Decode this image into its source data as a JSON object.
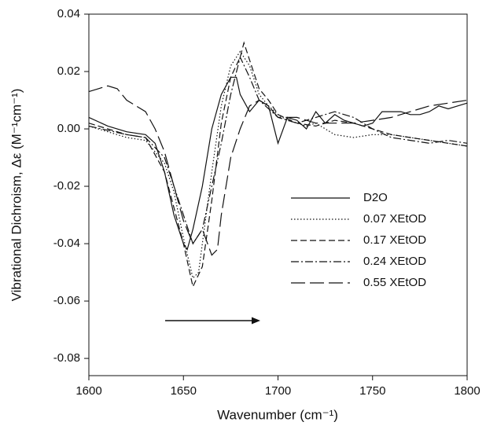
{
  "chart_data": {
    "type": "line",
    "x_label": "Wavenumber (cm⁻¹)",
    "y_label": "Vibrational Dichroism, Δε (M⁻¹cm⁻¹)",
    "xlim": [
      1600,
      1800
    ],
    "xticks": [
      1600,
      1650,
      1700,
      1750,
      1800
    ],
    "ylim": [
      -0.086,
      0.04
    ],
    "yticks": [
      0.04,
      0.02,
      {
        "value": 0,
        "label": "0.00"
      },
      -0.02,
      -0.04,
      -0.06,
      -0.08
    ],
    "series": [
      {
        "name": "D2O",
        "color": "#111111",
        "dash": "none",
        "x": [
          1600,
          1610,
          1620,
          1630,
          1635,
          1640,
          1645,
          1650,
          1652,
          1655,
          1660,
          1665,
          1670,
          1675,
          1678,
          1680,
          1685,
          1690,
          1695,
          1700,
          1705,
          1710,
          1715,
          1720,
          1725,
          1730,
          1735,
          1740,
          1745,
          1750,
          1755,
          1760,
          1765,
          1770,
          1775,
          1780,
          1785,
          1790,
          1795,
          1800
        ],
        "values": [
          0.004,
          0.001,
          -0.001,
          -0.002,
          -0.005,
          -0.015,
          -0.03,
          -0.04,
          -0.042,
          -0.035,
          -0.02,
          0.0,
          0.012,
          0.018,
          0.018,
          0.012,
          0.006,
          0.01,
          0.008,
          -0.005,
          0.004,
          0.003,
          0.0,
          0.006,
          0.002,
          0.005,
          0.003,
          0.002,
          0.001,
          0.002,
          0.006,
          0.006,
          0.006,
          0.005,
          0.005,
          0.006,
          0.008,
          0.007,
          0.008,
          0.009
        ]
      },
      {
        "name": "0.07 XEtOD",
        "color": "#111111",
        "dash": "1.5,2.5",
        "x": [
          1600,
          1610,
          1620,
          1630,
          1640,
          1645,
          1650,
          1655,
          1658,
          1660,
          1665,
          1670,
          1675,
          1680,
          1685,
          1690,
          1695,
          1700,
          1705,
          1710,
          1715,
          1720,
          1725,
          1730,
          1740,
          1750,
          1760,
          1770,
          1780,
          1790,
          1800
        ],
        "values": [
          0.001,
          -0.001,
          -0.003,
          -0.004,
          -0.012,
          -0.022,
          -0.038,
          -0.052,
          -0.05,
          -0.04,
          -0.015,
          0.008,
          0.022,
          0.027,
          0.022,
          0.012,
          0.008,
          0.005,
          0.003,
          0.002,
          0.001,
          0.002,
          0.0,
          -0.002,
          -0.003,
          -0.002,
          -0.002,
          -0.003,
          -0.004,
          -0.005,
          -0.006
        ]
      },
      {
        "name": "0.17 XEtOD",
        "color": "#111111",
        "dash": "8,4",
        "x": [
          1600,
          1620,
          1630,
          1640,
          1650,
          1655,
          1660,
          1665,
          1670,
          1675,
          1680,
          1682,
          1685,
          1690,
          1695,
          1700,
          1710,
          1720,
          1730,
          1740,
          1750,
          1760,
          1770,
          1780,
          1790,
          1800
        ],
        "values": [
          0.002,
          -0.002,
          -0.003,
          -0.015,
          -0.04,
          -0.055,
          -0.048,
          -0.025,
          0.002,
          0.018,
          0.025,
          0.03,
          0.024,
          0.014,
          0.01,
          0.005,
          0.002,
          0.001,
          0.003,
          0.002,
          0.0,
          -0.002,
          -0.003,
          -0.004,
          -0.005,
          -0.006
        ]
      },
      {
        "name": "0.24 XEtOD",
        "color": "#111111",
        "dash": "10,3,2,3",
        "x": [
          1600,
          1620,
          1630,
          1640,
          1650,
          1655,
          1660,
          1665,
          1670,
          1675,
          1680,
          1685,
          1690,
          1700,
          1710,
          1720,
          1730,
          1740,
          1750,
          1760,
          1770,
          1780,
          1790,
          1800
        ],
        "values": [
          0.001,
          -0.002,
          -0.003,
          -0.01,
          -0.03,
          -0.04,
          -0.035,
          -0.02,
          -0.005,
          0.012,
          0.025,
          0.018,
          0.01,
          0.004,
          0.002,
          0.004,
          0.006,
          0.004,
          0.0,
          -0.003,
          -0.004,
          -0.005,
          -0.004,
          -0.005
        ]
      },
      {
        "name": "0.55 XEtOD",
        "color": "#111111",
        "dash": "18,6",
        "x": [
          1600,
          1605,
          1610,
          1615,
          1620,
          1625,
          1630,
          1635,
          1640,
          1645,
          1650,
          1655,
          1660,
          1665,
          1668,
          1670,
          1675,
          1680,
          1685,
          1690,
          1695,
          1700,
          1710,
          1720,
          1730,
          1740,
          1750,
          1760,
          1770,
          1780,
          1790,
          1800
        ],
        "values": [
          0.013,
          0.014,
          0.015,
          0.014,
          0.01,
          0.008,
          0.006,
          0.0,
          -0.008,
          -0.02,
          -0.032,
          -0.04,
          -0.035,
          -0.044,
          -0.042,
          -0.03,
          -0.01,
          0.0,
          0.008,
          0.01,
          0.008,
          0.004,
          0.004,
          0.002,
          0.002,
          0.002,
          0.003,
          0.004,
          0.006,
          0.008,
          0.009,
          0.01
        ]
      }
    ]
  }
}
